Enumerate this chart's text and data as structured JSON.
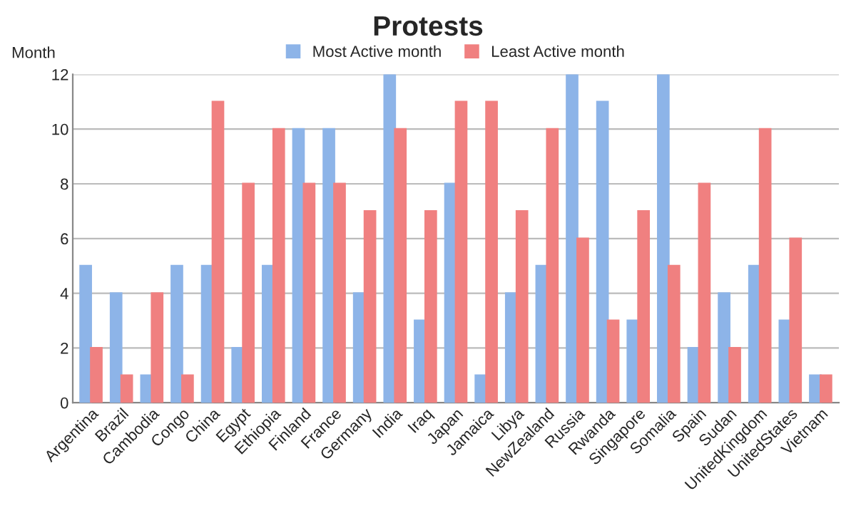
{
  "chart_data": {
    "type": "bar",
    "title": "Protests",
    "ylabel": "Month",
    "categories": [
      "Argentina",
      "Brazil",
      "Cambodia",
      "Congo",
      "China",
      "Egypt",
      "Ethiopia",
      "Finland",
      "France",
      "Germany",
      "India",
      "Iraq",
      "Japan",
      "Jamaica",
      "Libya",
      "NewZealand",
      "Russia",
      "Rwanda",
      "Singapore",
      "Somalia",
      "Spain",
      "Sudan",
      "UnitedKingdom",
      "UnitedStates",
      "Vietnam"
    ],
    "series": [
      {
        "name": "Most Active month",
        "color": "#8db4e8",
        "values": [
          5,
          4,
          1,
          5,
          5,
          2,
          5,
          10,
          10,
          4,
          12,
          3,
          8,
          1,
          4,
          5,
          12,
          11,
          3,
          12,
          2,
          4,
          5,
          3,
          1
        ]
      },
      {
        "name": "Least Active month",
        "color": "#f08080",
        "values": [
          2,
          1,
          4,
          1,
          11,
          8,
          10,
          8,
          8,
          7,
          10,
          7,
          11,
          11,
          7,
          10,
          6,
          3,
          7,
          5,
          8,
          2,
          10,
          6,
          1
        ]
      }
    ],
    "ylim": [
      0,
      12
    ],
    "yticks": [
      0,
      2,
      4,
      6,
      8,
      10,
      12
    ],
    "grid": "y",
    "legend": "top"
  }
}
